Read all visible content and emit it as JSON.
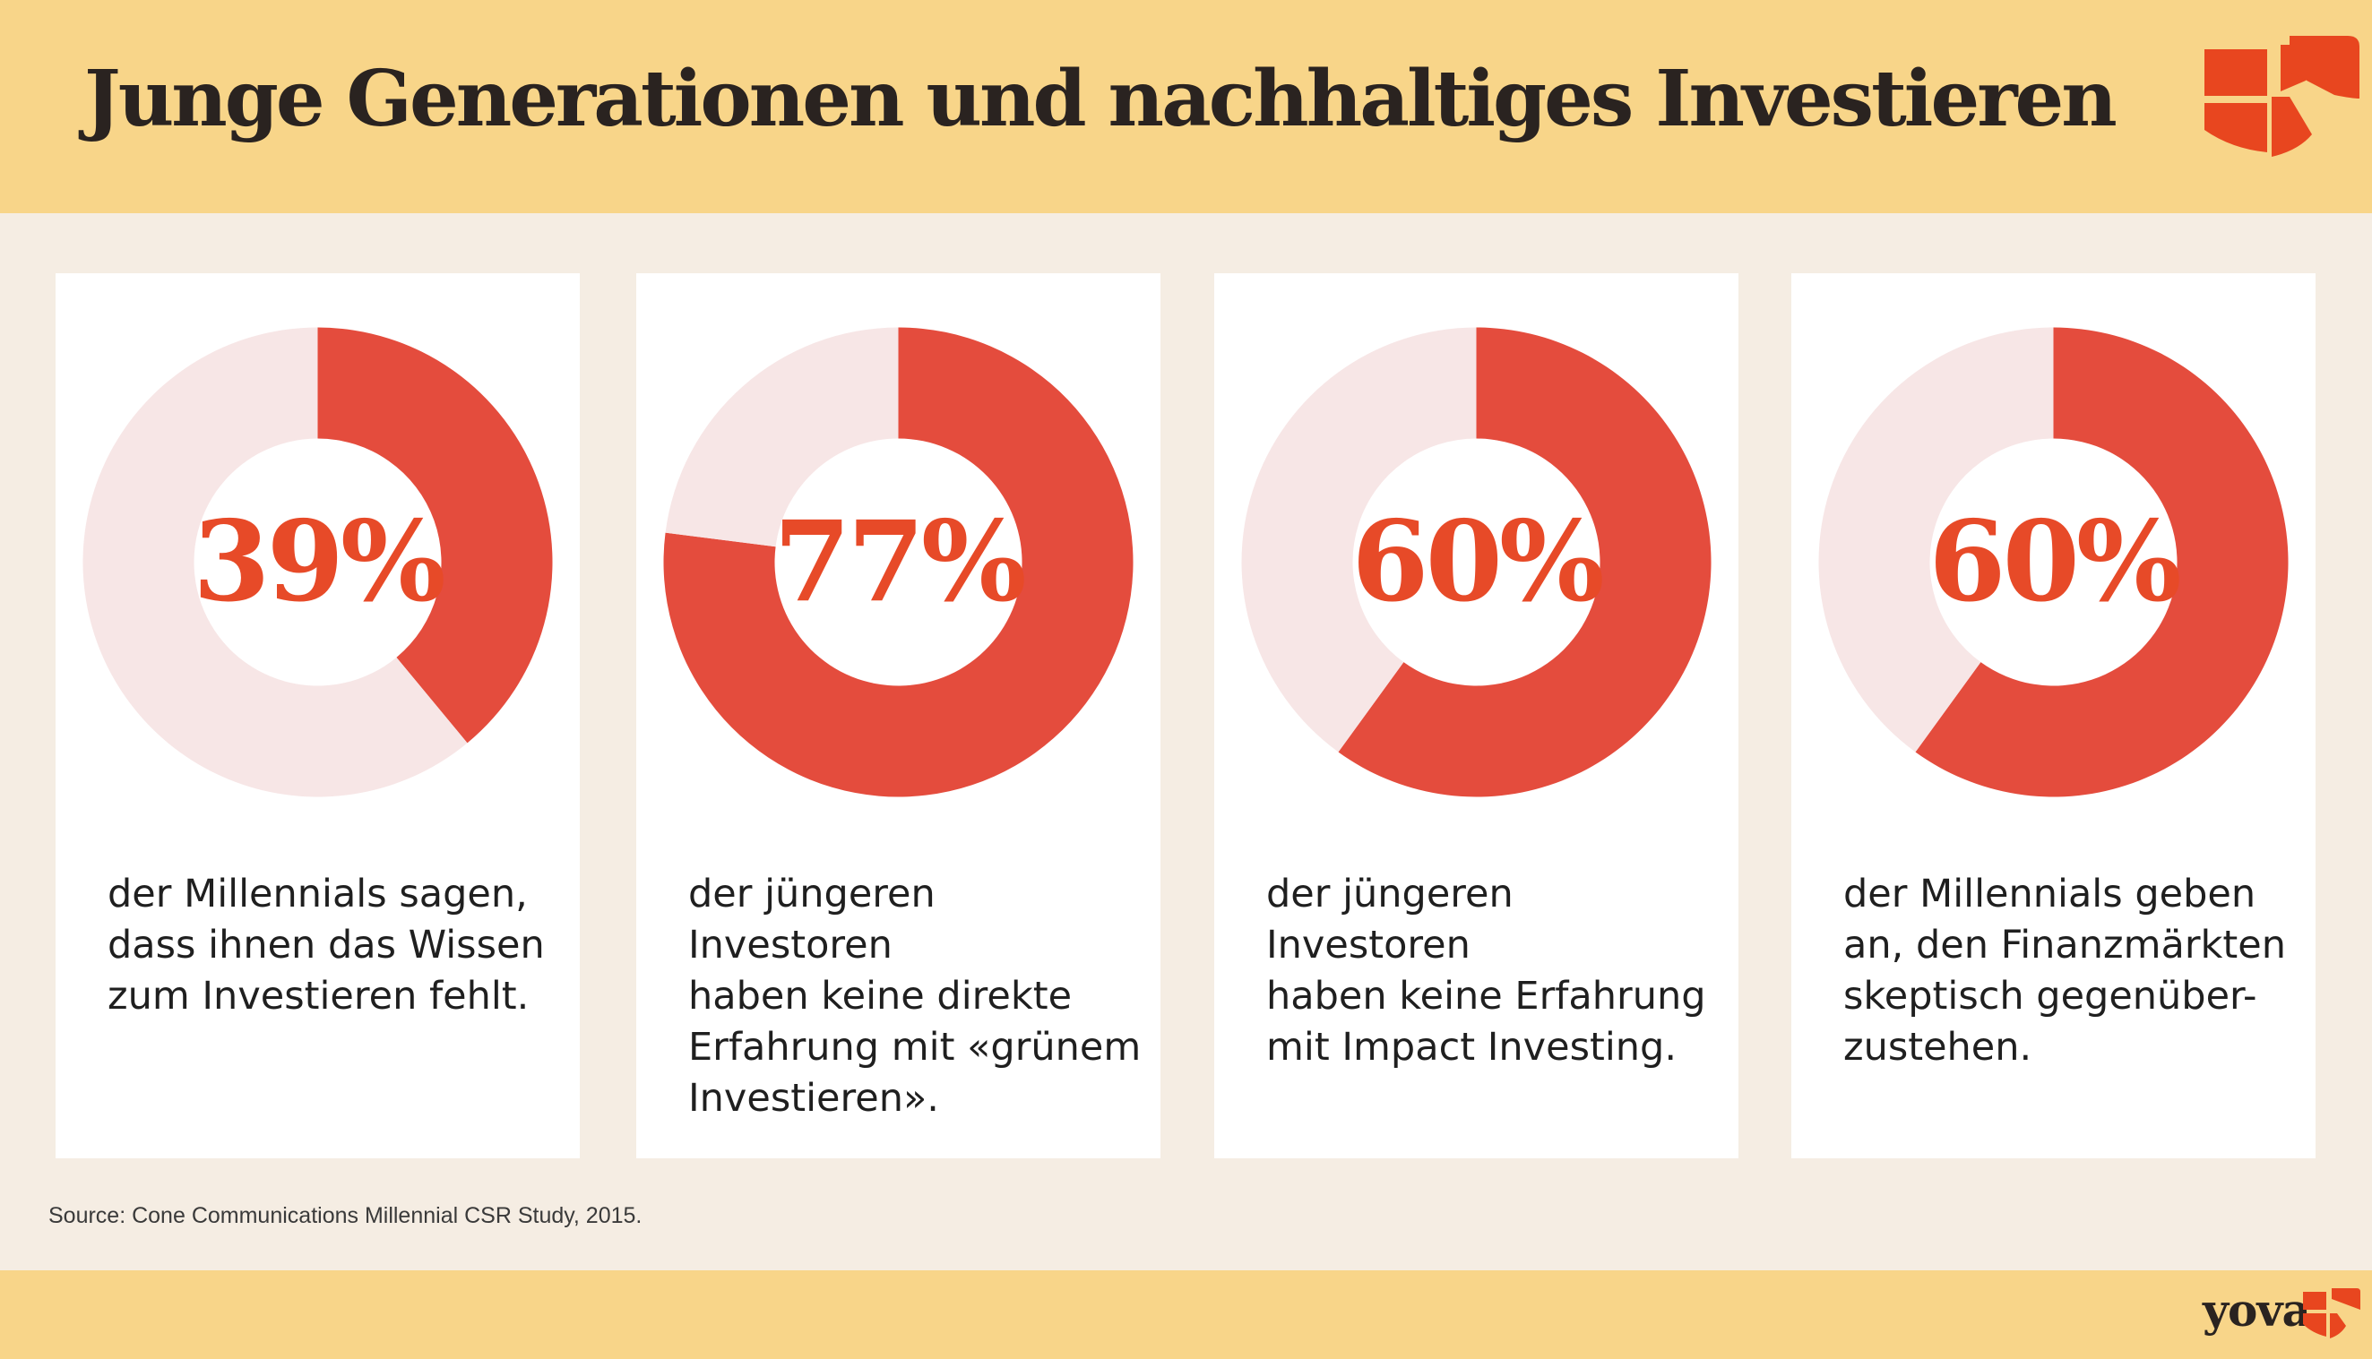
{
  "header": {
    "title": "Junge Generationen und nachhaltiges Investieren",
    "background": "#f8d589"
  },
  "colors": {
    "accent": "#e74a28",
    "donut_filled": "#e44c3d",
    "donut_rest": "#f7e6e6",
    "page_background": "#f5ede3",
    "card_background": "#ffffff"
  },
  "chart_data": [
    {
      "type": "pie",
      "variant": "donut",
      "values": [
        39,
        61
      ],
      "value_label": "39%",
      "description": "der Millennials sagen,\ndass ihnen das Wissen\nzum Investieren fehlt."
    },
    {
      "type": "pie",
      "variant": "donut",
      "values": [
        77,
        23
      ],
      "value_label": "77%",
      "description": "der jüngeren Investoren\nhaben keine direkte\nErfahrung mit «grünem\nInvestieren»."
    },
    {
      "type": "pie",
      "variant": "donut",
      "values": [
        60,
        40
      ],
      "value_label": "60%",
      "description": "der jüngeren Investoren\nhaben keine Erfahrung\nmit Impact Investing."
    },
    {
      "type": "pie",
      "variant": "donut",
      "values": [
        60,
        40
      ],
      "value_label": "60%",
      "description": "der Millennials geben\nan, den Finanzmärkten\nskeptisch gegenüber-\nzustehen."
    }
  ],
  "source": "Source: Cone Communications Millennial CSR Study, 2015.",
  "footer": {
    "brand": "yova",
    "logo_icon": "yova-flower-icon"
  }
}
